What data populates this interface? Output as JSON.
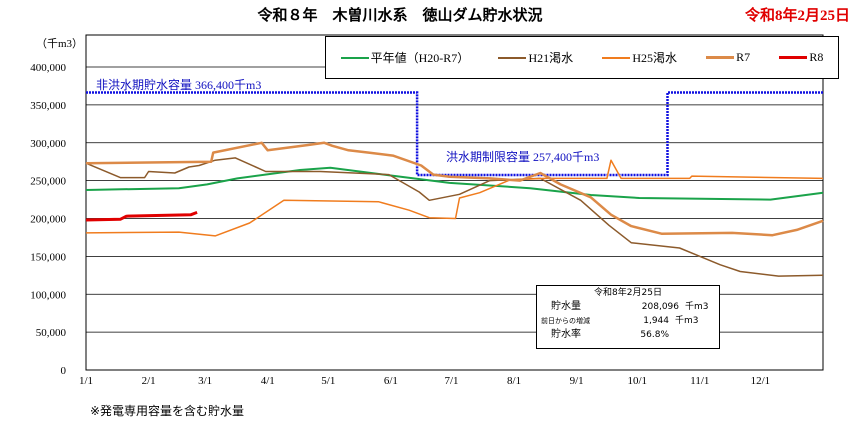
{
  "title": "令和８年　木曽川水系　徳山ダム貯水状況",
  "date_label": "令和8年2月25日",
  "footnote": "※発電専用容量を含む貯水量",
  "info_box": {
    "date": "令和8年2月25日",
    "rows": [
      {
        "label": "貯水量",
        "value": "208,096",
        "unit": "千m3"
      },
      {
        "label": "前日からの増減",
        "value": "1,944",
        "unit": "千m3"
      },
      {
        "label": "貯水率",
        "value": "56.8%",
        "unit": ""
      }
    ]
  },
  "chart_data": {
    "type": "line",
    "ylabel": "（千m3）",
    "ylim": [
      0,
      400000
    ],
    "yticks": [
      "0",
      "50,000",
      "100,000",
      "150,000",
      "200,000",
      "250,000",
      "300,000",
      "350,000",
      "400,000"
    ],
    "xlim": [
      0,
      365
    ],
    "xticks": [
      {
        "day": 0,
        "label": "1/1"
      },
      {
        "day": 31,
        "label": "2/1"
      },
      {
        "day": 59,
        "label": "3/1"
      },
      {
        "day": 90,
        "label": "4/1"
      },
      {
        "day": 120,
        "label": "5/1"
      },
      {
        "day": 151,
        "label": "6/1"
      },
      {
        "day": 181,
        "label": "7/1"
      },
      {
        "day": 212,
        "label": "8/1"
      },
      {
        "day": 243,
        "label": "9/1"
      },
      {
        "day": 273,
        "label": "10/1"
      },
      {
        "day": 304,
        "label": "11/1"
      },
      {
        "day": 334,
        "label": "12/1"
      }
    ],
    "grid": true,
    "legend_position": "top-right",
    "annotations": {
      "non_flood": "非洪水期貯水容量  366,400千m3",
      "flood": "洪水期制限容量  257,400千m3"
    },
    "capacity": {
      "color": "#1010e0",
      "points": [
        [
          0,
          366400
        ],
        [
          164,
          366400
        ],
        [
          164,
          257400
        ],
        [
          288,
          257400
        ],
        [
          288,
          366400
        ],
        [
          365,
          366400
        ]
      ]
    },
    "series": [
      {
        "name": "平年値（H20-R7）",
        "color": "#1aa34a",
        "width": 2,
        "points": [
          [
            0,
            237600
          ],
          [
            46,
            240000
          ],
          [
            60,
            245000
          ],
          [
            75,
            253000
          ],
          [
            106,
            264000
          ],
          [
            121,
            267000
          ],
          [
            150,
            257000
          ],
          [
            180,
            247000
          ],
          [
            220,
            240000
          ],
          [
            250,
            231000
          ],
          [
            274,
            227000
          ],
          [
            339,
            225000
          ],
          [
            365,
            234000
          ]
        ]
      },
      {
        "name": "H21渇水",
        "color": "#8c5a2b",
        "width": 1.5,
        "points": [
          [
            0,
            273000
          ],
          [
            17,
            254000
          ],
          [
            29,
            254000
          ],
          [
            31,
            262000
          ],
          [
            44,
            260000
          ],
          [
            51,
            268000
          ],
          [
            56,
            270000
          ],
          [
            64,
            277000
          ],
          [
            74,
            280000
          ],
          [
            89,
            262000
          ],
          [
            116,
            262000
          ],
          [
            150,
            258000
          ],
          [
            165,
            235000
          ],
          [
            170,
            224000
          ],
          [
            185,
            232000
          ],
          [
            200,
            250000
          ],
          [
            225,
            253000
          ],
          [
            245,
            224000
          ],
          [
            259,
            191000
          ],
          [
            270,
            168000
          ],
          [
            294,
            161000
          ],
          [
            314,
            139000
          ],
          [
            324,
            130000
          ],
          [
            343,
            124000
          ],
          [
            365,
            125000
          ]
        ]
      },
      {
        "name": "H25渇水",
        "color": "#f07c1e",
        "width": 1.5,
        "points": [
          [
            0,
            181000
          ],
          [
            46,
            182000
          ],
          [
            64,
            177000
          ],
          [
            81,
            194000
          ],
          [
            98,
            224000
          ],
          [
            145,
            222000
          ],
          [
            160,
            211000
          ],
          [
            170,
            201000
          ],
          [
            183,
            200000
          ],
          [
            185,
            227000
          ],
          [
            195,
            234000
          ],
          [
            210,
            251000
          ],
          [
            227,
            253000
          ],
          [
            258,
            253000
          ],
          [
            260,
            277000
          ],
          [
            265,
            253000
          ],
          [
            299,
            253000
          ],
          [
            300,
            256000
          ],
          [
            365,
            253000
          ]
        ]
      },
      {
        "name": "R7",
        "color": "#dc8a48",
        "width": 2.5,
        "points": [
          [
            0,
            273000
          ],
          [
            62,
            275000
          ],
          [
            63,
            287000
          ],
          [
            87,
            300000
          ],
          [
            90,
            290000
          ],
          [
            110,
            297000
          ],
          [
            118,
            300000
          ],
          [
            122,
            296000
          ],
          [
            130,
            290000
          ],
          [
            140,
            287000
          ],
          [
            152,
            283000
          ],
          [
            166,
            270000
          ],
          [
            172,
            258000
          ],
          [
            180,
            255000
          ],
          [
            200,
            253000
          ],
          [
            215,
            250000
          ],
          [
            225,
            260000
          ],
          [
            235,
            245000
          ],
          [
            250,
            228000
          ],
          [
            260,
            205000
          ],
          [
            270,
            190000
          ],
          [
            285,
            180000
          ],
          [
            320,
            181000
          ],
          [
            340,
            178000
          ],
          [
            352,
            185000
          ],
          [
            365,
            197000
          ]
        ]
      },
      {
        "name": "R8",
        "color": "#e00000",
        "width": 3,
        "points": [
          [
            0,
            198000
          ],
          [
            17,
            199000
          ],
          [
            20,
            203000
          ],
          [
            52,
            205000
          ],
          [
            55,
            208000
          ]
        ]
      }
    ]
  }
}
